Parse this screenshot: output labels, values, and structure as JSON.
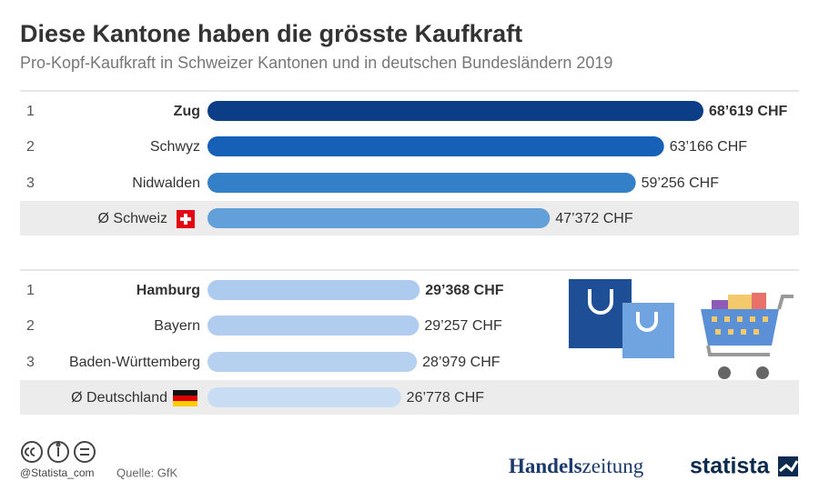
{
  "chart_data": {
    "type": "bar",
    "title": "Diese Kantone haben die grösste Kaufkraft",
    "subtitle": "Pro-Kopf-Kaufkraft in Schweizer Kantonen und in deutschen Bundesländern 2019",
    "ranks": [
      "1",
      "2",
      "3",
      null,
      "1",
      "2",
      "3",
      null
    ],
    "categories": [
      "Zug",
      "Schwyz",
      "Nidwalden",
      "Ø Schweiz",
      "Hamburg",
      "Bayern",
      "Baden-Württemberg",
      "Ø Deutschland"
    ],
    "values": [
      68619,
      63166,
      59256,
      47372,
      29368,
      29257,
      28979,
      26778
    ],
    "value_labels": [
      "68’619 CHF",
      "63’166 CHF",
      "59’256 CHF",
      "47’372 CHF",
      "29’368 CHF",
      "29’257 CHF",
      "28’979 CHF",
      "26’778 CHF"
    ],
    "colors": [
      "#0c3d87",
      "#1660b8",
      "#3380c8",
      "#639fd8",
      "#adcbef",
      "#b0ccef",
      "#b6d1f0",
      "#c8dcf4"
    ],
    "bold": [
      true,
      false,
      false,
      false,
      true,
      false,
      false,
      false
    ],
    "highlight": [
      false,
      false,
      false,
      true,
      false,
      false,
      false,
      true
    ]
  },
  "footer": {
    "handle": "@Statista_com",
    "source": "Quelle: GfK",
    "brand_part1": "Handels",
    "brand_part2": "zeitung",
    "brand2": "statista"
  }
}
